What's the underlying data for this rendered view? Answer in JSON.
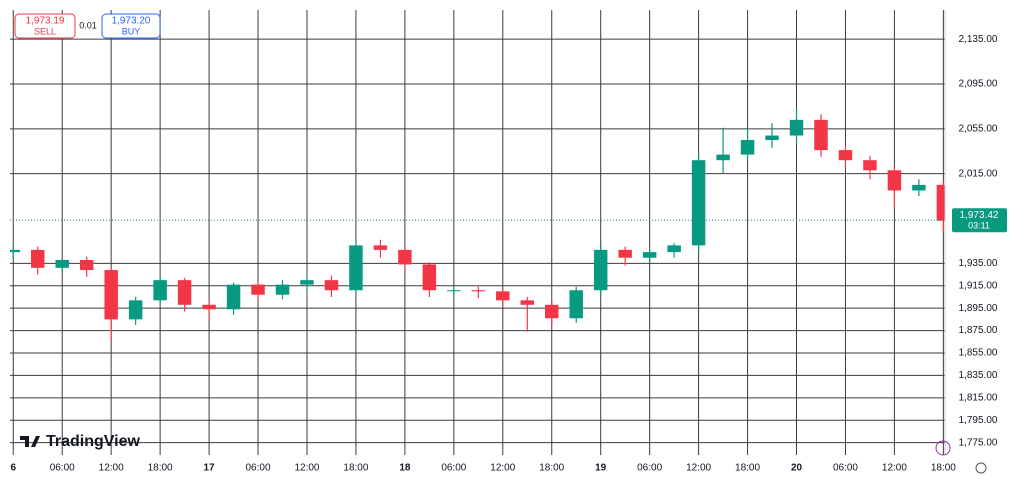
{
  "chart_data": {
    "type": "candlestick",
    "xlim": [
      -0.4,
      114.2
    ],
    "ylim": [
      1764,
      2161
    ],
    "x": [
      0,
      3,
      6,
      9,
      12,
      15,
      18,
      21,
      24,
      27,
      30,
      33,
      36,
      39,
      42,
      45,
      48,
      51,
      54,
      57,
      60,
      63,
      66,
      69,
      72,
      75,
      78,
      81,
      84,
      87,
      90,
      93,
      96,
      99,
      102,
      105,
      108,
      111,
      114
    ],
    "open": [
      1945,
      1947,
      1931,
      1938,
      1929,
      1885,
      1902,
      1920,
      1898,
      1894,
      1916,
      1907,
      1916,
      1920,
      1911,
      1951,
      1947,
      1934,
      1911,
      1911,
      1910,
      1902,
      1898,
      1886,
      1911,
      1947,
      1940,
      1945,
      1951,
      2027,
      2032,
      2045,
      2049,
      2063,
      2036,
      2027,
      2018,
      2000,
      2005
    ],
    "high": [
      1951,
      1950,
      1939,
      1941,
      1932,
      1905,
      1924,
      1922,
      1902,
      1918,
      1919,
      1920,
      1925,
      1924,
      1955,
      1956,
      1950,
      1936,
      1915,
      1914,
      1913,
      1905,
      1901,
      1914,
      1951,
      1950,
      1947,
      1953,
      2033,
      2056,
      2055,
      2060,
      2072,
      2068,
      2040,
      2031,
      2022,
      2010,
      2008
    ],
    "low": [
      1940,
      1925,
      1926,
      1923,
      1866,
      1880,
      1897,
      1892,
      1885,
      1889,
      1901,
      1903,
      1910,
      1905,
      1905,
      1940,
      1928,
      1905,
      1905,
      1904,
      1896,
      1874,
      1880,
      1882,
      1905,
      1933,
      1935,
      1940,
      1945,
      2015,
      2026,
      2038,
      2042,
      2030,
      2020,
      2010,
      1985,
      1995,
      1963
    ],
    "close": [
      1947,
      1931,
      1938,
      1929,
      1885,
      1902,
      1920,
      1898,
      1894,
      1916,
      1907,
      1916,
      1920,
      1911,
      1951,
      1947,
      1934,
      1911,
      1911,
      1910,
      1902,
      1898,
      1886,
      1911,
      1947,
      1940,
      1945,
      1951,
      2027,
      2032,
      2045,
      2049,
      2063,
      2036,
      2027,
      2018,
      2000,
      2005,
      1973
    ],
    "up_color": "#089981",
    "down_color": "#f23645",
    "yticks": [
      {
        "value": 2135,
        "label": "2,135.00"
      },
      {
        "value": 2095,
        "label": "2,095.00"
      },
      {
        "value": 2055,
        "label": "2,055.00"
      },
      {
        "value": 2015,
        "label": "2,015.00"
      },
      {
        "value": 1935,
        "label": "1,935.00"
      },
      {
        "value": 1915,
        "label": "1,915.00"
      },
      {
        "value": 1895,
        "label": "1,895.00"
      },
      {
        "value": 1875,
        "label": "1,875.00"
      },
      {
        "value": 1855,
        "label": "1,855.00"
      },
      {
        "value": 1835,
        "label": "1,835.00"
      },
      {
        "value": 1815,
        "label": "1,815.00"
      },
      {
        "value": 1795,
        "label": "1,795.00"
      },
      {
        "value": 1775,
        "label": "1,775.00"
      }
    ],
    "xticks": [
      {
        "value": 0,
        "label": "6"
      },
      {
        "value": 6,
        "label": "06:00"
      },
      {
        "value": 12,
        "label": "12:00"
      },
      {
        "value": 18,
        "label": "18:00"
      },
      {
        "value": 24,
        "label": "17"
      },
      {
        "value": 30,
        "label": "06:00"
      },
      {
        "value": 36,
        "label": "12:00"
      },
      {
        "value": 42,
        "label": "18:00"
      },
      {
        "value": 48,
        "label": "18"
      },
      {
        "value": 54,
        "label": "06:00"
      },
      {
        "value": 60,
        "label": "12:00"
      },
      {
        "value": 66,
        "label": "18:00"
      },
      {
        "value": 72,
        "label": "19"
      },
      {
        "value": 78,
        "label": "06:00"
      },
      {
        "value": 84,
        "label": "12:00"
      },
      {
        "value": 90,
        "label": "18:00"
      },
      {
        "value": 96,
        "label": "20"
      },
      {
        "value": 102,
        "label": "06:00"
      },
      {
        "value": 108,
        "label": "12:00"
      },
      {
        "value": 114,
        "label": "18:00"
      }
    ],
    "grid": true,
    "last_price": {
      "value": 1973.42,
      "label": "1,973.42"
    },
    "countdown": "03:11",
    "sell_price": "1,973.19",
    "sell_label": "SELL",
    "spread": "0.01",
    "buy_price": "1,973.20",
    "buy_label": "BUY",
    "branding": "TradingView"
  }
}
